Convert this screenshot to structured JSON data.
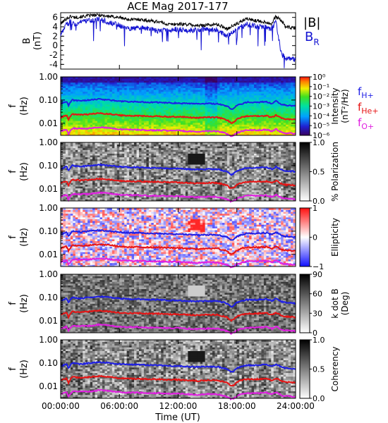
{
  "chart_data": [
    {
      "type": "line",
      "title": "ACE Mag 2017-177",
      "ylabel": "B",
      "yunit": "(nT)",
      "ylim": [
        -5,
        7
      ],
      "yticks": [
        6,
        4,
        2,
        0,
        -2,
        -4
      ],
      "legend": [
        "|B|",
        "B",
        "R"
      ],
      "legend_colors": [
        "#000000",
        "#1414d2"
      ],
      "series": [
        {
          "name": "|B|",
          "color": "#000000",
          "t": [
            0,
            0.5,
            1,
            1.5,
            2,
            3,
            4,
            5,
            6,
            7,
            8,
            9,
            10,
            11,
            12,
            13,
            14,
            15,
            16,
            17,
            17.5,
            18,
            19,
            20,
            21,
            21.5,
            22,
            22.5,
            23,
            24
          ],
          "values": [
            4.6,
            5.6,
            6.2,
            6.0,
            6.1,
            6.4,
            6.5,
            6.2,
            6.0,
            5.5,
            5.6,
            5.3,
            5.1,
            4.5,
            4.6,
            4.5,
            4.2,
            4.4,
            4.5,
            3.6,
            4.1,
            4.6,
            5.7,
            5.3,
            5.0,
            4.6,
            6.2,
            5.4,
            4.0,
            3.6
          ]
        },
        {
          "name": "BR",
          "color": "#1414d2",
          "t": [
            0,
            0.5,
            1,
            1.5,
            2,
            3,
            4,
            5,
            6,
            7,
            8,
            9,
            10,
            11,
            12,
            13,
            14,
            15,
            16,
            17,
            17.5,
            18,
            19,
            20,
            21,
            21.5,
            22,
            22.5,
            23,
            24
          ],
          "values": [
            2.2,
            4.3,
            5.2,
            4.5,
            5.0,
            5.3,
            5.6,
            4.9,
            4.3,
            3.6,
            3.8,
            3.6,
            3.1,
            3.4,
            3.5,
            3.2,
            3.3,
            3.6,
            3.2,
            2.1,
            2.8,
            3.5,
            4.6,
            4.0,
            4.0,
            3.4,
            5.1,
            -1.5,
            -2.8,
            -3.0
          ]
        }
      ]
    },
    {
      "type": "heatmap",
      "ylabel": "f",
      "yunit": "(Hz)",
      "ylog": true,
      "ylim": [
        0.003,
        1.0
      ],
      "yticks": [
        "1.00",
        "0.10",
        "0.01"
      ],
      "colorbar": {
        "label": "Intensity",
        "unit": "(nT²/Hz)",
        "ticks": [
          "10⁰",
          "10⁻¹",
          "10⁻²",
          "10⁻³",
          "10⁻⁴",
          "10⁻⁵",
          "10⁻⁶"
        ],
        "scheme": "rainbow"
      },
      "legend": [
        {
          "label": "f",
          "sub": "H+",
          "color": "#1e1ee6"
        },
        {
          "label": "f",
          "sub": "He+",
          "color": "#e61414"
        },
        {
          "label": "f",
          "sub": "O+",
          "color": "#e01ee0"
        }
      ]
    },
    {
      "type": "heatmap",
      "ylabel": "f",
      "yunit": "(Hz)",
      "ylog": true,
      "ylim": [
        0.003,
        1.0
      ],
      "yticks": [
        "1.00",
        "0.10",
        "0.01"
      ],
      "colorbar": {
        "label": "% Polarization",
        "unit": "",
        "ticks": [
          "1.0",
          "0.5",
          "0.0"
        ],
        "scheme": "gray"
      }
    },
    {
      "type": "heatmap",
      "ylabel": "f",
      "yunit": "(Hz)",
      "ylog": true,
      "ylim": [
        0.003,
        1.0
      ],
      "yticks": [
        "1.00",
        "0.10",
        "0.01"
      ],
      "colorbar": {
        "label": "Ellipticity",
        "unit": "",
        "ticks": [
          "1",
          "0",
          "−1"
        ],
        "scheme": "bwr"
      }
    },
    {
      "type": "heatmap",
      "ylabel": "f",
      "yunit": "(Hz)",
      "ylog": true,
      "ylim": [
        0.003,
        1.0
      ],
      "yticks": [
        "1.00",
        "0.10",
        "0.01"
      ],
      "colorbar": {
        "label": "k dot B",
        "unit": "(Deg)",
        "ticks": [
          "90",
          "60",
          "30",
          "0"
        ],
        "scheme": "gray_inv"
      }
    },
    {
      "type": "heatmap",
      "ylabel": "f",
      "yunit": "(Hz)",
      "ylog": true,
      "ylim": [
        0.003,
        1.0
      ],
      "yticks": [
        "1.00",
        "0.10",
        "0.01"
      ],
      "colorbar": {
        "label": "Coherency",
        "unit": "",
        "ticks": [
          "1.0",
          "0.5",
          "0.0"
        ],
        "scheme": "gray"
      }
    }
  ],
  "gyro_lines": {
    "t": [
      0,
      0.6,
      0.8,
      1.2,
      2,
      3,
      4,
      5,
      6,
      7,
      8,
      9,
      10,
      11,
      12,
      13,
      14,
      15,
      16,
      17,
      17.4,
      17.7,
      18,
      18.5,
      19,
      20,
      21,
      21.6,
      22,
      22.6,
      23,
      24
    ],
    "H+": [
      0.07,
      0.09,
      0.06,
      0.1,
      0.09,
      0.1,
      0.11,
      0.1,
      0.09,
      0.085,
      0.085,
      0.08,
      0.08,
      0.075,
      0.075,
      0.07,
      0.068,
      0.07,
      0.07,
      0.055,
      0.04,
      0.045,
      0.06,
      0.07,
      0.08,
      0.08,
      0.085,
      0.07,
      0.09,
      0.065,
      0.06,
      0.055
    ],
    "He+": [
      0.018,
      0.022,
      0.014,
      0.025,
      0.023,
      0.025,
      0.027,
      0.025,
      0.022,
      0.021,
      0.021,
      0.02,
      0.02,
      0.019,
      0.019,
      0.018,
      0.017,
      0.018,
      0.018,
      0.014,
      0.01,
      0.011,
      0.015,
      0.018,
      0.02,
      0.02,
      0.021,
      0.018,
      0.022,
      0.016,
      0.015,
      0.014
    ],
    "O+": [
      0.0045,
      0.0055,
      0.0035,
      0.006,
      0.0058,
      0.006,
      0.0068,
      0.0062,
      0.0055,
      0.0053,
      0.0053,
      0.005,
      0.005,
      0.0048,
      0.0048,
      0.0045,
      0.0043,
      0.0045,
      0.0045,
      0.0035,
      0.0028,
      0.003,
      0.0038,
      0.0045,
      0.005,
      0.005,
      0.0053,
      0.0045,
      0.0055,
      0.004,
      0.0038,
      0.0035
    ]
  },
  "xaxis": {
    "label": "Time (UT)",
    "ticks": [
      "00:00:00",
      "06:00:00",
      "12:00:00",
      "18:00:00",
      "24:00:00"
    ],
    "tick_hours": [
      0,
      6,
      12,
      18,
      24
    ]
  }
}
